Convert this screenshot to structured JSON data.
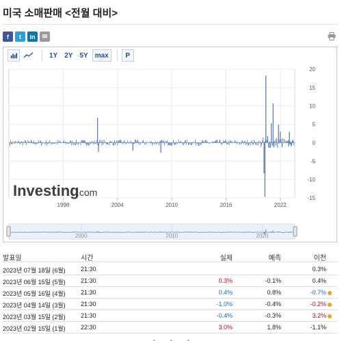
{
  "page": {
    "title": "미국 소매판매 <전월 대비>"
  },
  "share": {
    "icons": [
      "facebook-icon",
      "twitter-icon",
      "linkedin-icon",
      "mail-icon"
    ],
    "glyphs": [
      "f",
      "t",
      "in",
      "✉"
    ],
    "print_icon": "print-icon"
  },
  "toolbar": {
    "chart_type_icons": [
      "bar-chart-icon",
      "line-chart-icon"
    ],
    "ranges": [
      "1Y",
      "2Y",
      "5Y",
      "max"
    ],
    "active_range": "max",
    "pin_label": "P"
  },
  "watermark": {
    "brand": "Investing",
    "suffix": ".com"
  },
  "colors": {
    "line": "#5b7fb3",
    "positive": "#d0021b",
    "negative": "#1a6fd1",
    "accent_dot": "#f0a31c"
  },
  "chart_data": {
    "type": "bar",
    "x_ticks": [
      "1998",
      "2004",
      "2010",
      "2016",
      "2022"
    ],
    "x_range": [
      1992.0,
      2023.6
    ],
    "y_ticks": [
      "20",
      "15",
      "10",
      "5",
      "0",
      "-5",
      "-10",
      "-15"
    ],
    "ylim": [
      -15,
      20
    ],
    "grid": true,
    "notable_points": [
      {
        "x": 2001.8,
        "y": 6.8
      },
      {
        "x": 2001.9,
        "y": -2.5
      },
      {
        "x": 2005.7,
        "y": -2.2
      },
      {
        "x": 2008.8,
        "y": -2.7
      },
      {
        "x": 2020.2,
        "y": -8.3
      },
      {
        "x": 2020.3,
        "y": -14.7
      },
      {
        "x": 2020.4,
        "y": 18.2
      },
      {
        "x": 2020.6,
        "y": 1.8
      },
      {
        "x": 2020.9,
        "y": -1.4
      },
      {
        "x": 2021.0,
        "y": 5.3
      },
      {
        "x": 2021.2,
        "y": 10.7
      },
      {
        "x": 2021.3,
        "y": -1.3
      },
      {
        "x": 2021.8,
        "y": 4.9
      },
      {
        "x": 2022.0,
        "y": 3.0
      },
      {
        "x": 2022.2,
        "y": -1.1
      },
      {
        "x": 2022.9,
        "y": -1.0
      },
      {
        "x": 2023.0,
        "y": 3.0
      },
      {
        "x": 2023.1,
        "y": -0.4
      },
      {
        "x": 2023.2,
        "y": -1.0
      },
      {
        "x": 2023.3,
        "y": 0.4
      },
      {
        "x": 2023.4,
        "y": 0.3
      }
    ],
    "navigator": {
      "x_ticks": [
        "2000",
        "2010",
        "2020"
      ]
    }
  },
  "table": {
    "headers": {
      "date": "발표일",
      "time": "시간",
      "actual": "실제",
      "forecast": "예측",
      "previous": "이전"
    },
    "rows": [
      {
        "date": "2023년 07월 18일 (6월)",
        "time": "21:30",
        "actual": "",
        "actual_tone": "neutral",
        "forecast": "",
        "previous": "0.3%",
        "previous_tone": "neutral",
        "dot": false
      },
      {
        "date": "2023년 06월 15일 (5월)",
        "time": "21:30",
        "actual": "0.3%",
        "actual_tone": "pos",
        "forecast": "-0.1%",
        "previous": "0.4%",
        "previous_tone": "neutral",
        "dot": false
      },
      {
        "date": "2023년 05월 16일 (4월)",
        "time": "21:30",
        "actual": "0.4%",
        "actual_tone": "neg",
        "forecast": "0.8%",
        "previous": "-0.7%",
        "previous_tone": "neg",
        "dot": true
      },
      {
        "date": "2023년 04월 14일 (3월)",
        "time": "21:30",
        "actual": "-1.0%",
        "actual_tone": "neg",
        "forecast": "-0.4%",
        "previous": "-0.2%",
        "previous_tone": "pos",
        "dot": true
      },
      {
        "date": "2023년 03월 15일 (2월)",
        "time": "21:30",
        "actual": "-0.4%",
        "actual_tone": "neg",
        "forecast": "-0.3%",
        "previous": "3.2%",
        "previous_tone": "pos",
        "dot": true
      },
      {
        "date": "2023년 02월 15일 (1월)",
        "time": "22:30",
        "actual": "3.0%",
        "actual_tone": "pos",
        "forecast": "1.8%",
        "previous": "-1.1%",
        "previous_tone": "neutral",
        "dot": false
      }
    ]
  }
}
